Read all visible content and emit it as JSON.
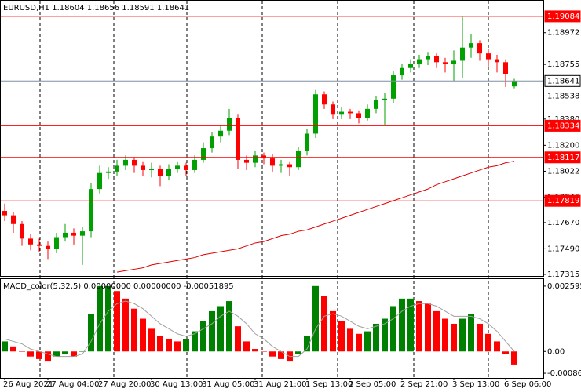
{
  "chart_data": [
    {
      "type": "candlestick",
      "title": "EURUSD,H1",
      "categories": [
        "26 Aug 2021",
        null,
        null,
        null,
        null,
        "27 Aug 04:00",
        null,
        null,
        null,
        null,
        null,
        "27 Aug 20:00",
        null,
        null,
        null,
        null,
        null,
        "30 Aug 13:00",
        null,
        null,
        null,
        null,
        null,
        "31 Aug 05:00",
        null,
        null,
        null,
        null,
        null,
        "31 Aug 21:00",
        null,
        null,
        null,
        null,
        null,
        "1 Sep 13:00",
        null,
        null,
        null,
        null,
        "2 Sep 05:00",
        null,
        null,
        null,
        null,
        null,
        "2 Sep 21:00",
        null,
        null,
        null,
        null,
        null,
        "3 Sep 13:00",
        null,
        null,
        null,
        null,
        null,
        "6 Sep 06:00",
        null
      ],
      "candles": [
        [
          1.1775,
          1.178,
          1.1768,
          1.1772
        ],
        [
          1.1772,
          1.1774,
          1.176,
          1.1766
        ],
        [
          1.1766,
          1.1768,
          1.1751,
          1.1756
        ],
        [
          1.1756,
          1.1759,
          1.1748,
          1.1752
        ],
        [
          1.1752,
          1.1756,
          1.1747,
          1.1751
        ],
        [
          1.1751,
          1.1754,
          1.1742,
          1.1749
        ],
        [
          1.1749,
          1.176,
          1.1746,
          1.1757
        ],
        [
          1.1757,
          1.1766,
          1.1754,
          1.176
        ],
        [
          1.176,
          1.1763,
          1.1752,
          1.1758
        ],
        [
          1.1758,
          1.1764,
          1.1738,
          1.1761
        ],
        [
          1.1761,
          1.1794,
          1.1757,
          1.179
        ],
        [
          1.179,
          1.1806,
          1.1787,
          1.1801
        ],
        [
          1.1801,
          1.1805,
          1.1797,
          1.1802
        ],
        [
          1.1802,
          1.181,
          1.1799,
          1.1806
        ],
        [
          1.1806,
          1.1813,
          1.1803,
          1.181
        ],
        [
          1.181,
          1.1812,
          1.1801,
          1.1806
        ],
        [
          1.1806,
          1.1809,
          1.1799,
          1.1803
        ],
        [
          1.1803,
          1.1808,
          1.1798,
          1.1804
        ],
        [
          1.1804,
          1.1806,
          1.1792,
          1.1799
        ],
        [
          1.1799,
          1.1807,
          1.1796,
          1.1804
        ],
        [
          1.1804,
          1.1809,
          1.1801,
          1.1806
        ],
        [
          1.1806,
          1.1808,
          1.1799,
          1.1803
        ],
        [
          1.1803,
          1.1813,
          1.1801,
          1.181
        ],
        [
          1.181,
          1.1822,
          1.1808,
          1.1818
        ],
        [
          1.1818,
          1.1829,
          1.1815,
          1.1826
        ],
        [
          1.1826,
          1.1834,
          1.1822,
          1.183
        ],
        [
          1.183,
          1.1845,
          1.1827,
          1.1839
        ],
        [
          1.1839,
          1.1841,
          1.1804,
          1.181
        ],
        [
          1.181,
          1.1813,
          1.1803,
          1.1808
        ],
        [
          1.1808,
          1.1816,
          1.1805,
          1.1813
        ],
        [
          1.1813,
          1.1815,
          1.1807,
          1.1811
        ],
        [
          1.1811,
          1.1814,
          1.1802,
          1.1806
        ],
        [
          1.1806,
          1.181,
          1.1801,
          1.1807
        ],
        [
          1.1807,
          1.1809,
          1.1799,
          1.1805
        ],
        [
          1.1805,
          1.1819,
          1.1803,
          1.1816
        ],
        [
          1.1816,
          1.1831,
          1.1813,
          1.1828
        ],
        [
          1.1828,
          1.1858,
          1.1825,
          1.1855
        ],
        [
          1.1855,
          1.1857,
          1.1845,
          1.1848
        ],
        [
          1.1848,
          1.185,
          1.1838,
          1.1841
        ],
        [
          1.1841,
          1.1846,
          1.1838,
          1.1843
        ],
        [
          1.1843,
          1.1845,
          1.1838,
          1.1842
        ],
        [
          1.1842,
          1.1844,
          1.1835,
          1.1839
        ],
        [
          1.1839,
          1.1848,
          1.1837,
          1.1845
        ],
        [
          1.1845,
          1.1854,
          1.1842,
          1.1851
        ],
        [
          1.1851,
          1.1856,
          1.1834,
          1.1852
        ],
        [
          1.1852,
          1.1871,
          1.1849,
          1.1868
        ],
        [
          1.1868,
          1.1876,
          1.1865,
          1.1873
        ],
        [
          1.1873,
          1.1879,
          1.187,
          1.1876
        ],
        [
          1.1876,
          1.1882,
          1.1873,
          1.1879
        ],
        [
          1.1879,
          1.1884,
          1.1875,
          1.1881
        ],
        [
          1.1881,
          1.1883,
          1.1873,
          1.1877
        ],
        [
          1.1877,
          1.188,
          1.187,
          1.1876
        ],
        [
          1.1876,
          1.1885,
          1.1864,
          1.1878
        ],
        [
          1.1878,
          1.1908,
          1.1866,
          1.1887
        ],
        [
          1.1887,
          1.1896,
          1.188,
          1.189
        ],
        [
          1.189,
          1.1892,
          1.1878,
          1.1883
        ],
        [
          1.1883,
          1.1886,
          1.1874,
          1.1879
        ],
        [
          1.1879,
          1.1882,
          1.187,
          1.1877
        ],
        [
          1.1877,
          1.1879,
          1.186,
          1.1869
        ],
        [
          1.18604,
          1.18656,
          1.18591,
          1.18641
        ]
      ],
      "up_color": "#00a000",
      "down_color": "#ff0000",
      "ma": {
        "color": "#e00000",
        "values": [
          null,
          null,
          null,
          null,
          null,
          null,
          null,
          null,
          null,
          null,
          null,
          null,
          null,
          1.1733,
          1.1734,
          1.1735,
          1.1736,
          1.1738,
          1.1739,
          1.174,
          1.1741,
          1.1742,
          1.1743,
          1.1745,
          1.1746,
          1.1747,
          1.1748,
          1.1749,
          1.1751,
          1.1753,
          1.1754,
          1.1756,
          1.1758,
          1.1759,
          1.1761,
          1.1762,
          1.1764,
          1.1766,
          1.1768,
          1.177,
          1.1772,
          1.1774,
          1.1776,
          1.1778,
          1.178,
          1.1782,
          1.1784,
          1.1786,
          1.1788,
          1.179,
          1.1793,
          1.1795,
          1.1797,
          1.1799,
          1.1801,
          1.1803,
          1.1805,
          1.1806,
          1.1808,
          1.1809
        ]
      },
      "hlines": [
        {
          "value": 1.19084,
          "color": "#ff0000"
        },
        {
          "value": 1.18641,
          "color": "#7f8fa0"
        },
        {
          "value": 1.18334,
          "color": "#ff0000"
        },
        {
          "value": 1.18117,
          "color": "#ff0000"
        },
        {
          "value": 1.17819,
          "color": "#ff0000"
        }
      ],
      "ylim": [
        1.17304,
        1.19191
      ],
      "yticks": [
        1.18972,
        1.18755,
        1.18538,
        {
          "value": 1.1838,
          "label": "1.18380"
        },
        {
          "value": 1.182,
          "label": "1.18200"
        },
        1.18022,
        1.17845,
        {
          "value": 1.1767,
          "label": "1.17670"
        },
        {
          "value": 1.1749,
          "label": "1.17490"
        },
        1.17315
      ]
    },
    {
      "type": "bar",
      "title": "MACD_color(5,32,5) 0.00000000 0.00000000 -0.00051895",
      "values": [
        0.0004,
        0.0002,
        0.0,
        -0.0002,
        -0.0003,
        -0.0004,
        -0.0002,
        -0.0001,
        -0.0002,
        0.0,
        0.0015,
        0.0026,
        0.0026,
        0.0024,
        0.0021,
        0.0017,
        0.0013,
        0.0009,
        0.0006,
        0.0005,
        0.0004,
        0.0005,
        0.0008,
        0.0012,
        0.0016,
        0.0018,
        0.002,
        0.001,
        0.0004,
        0.0001,
        0.0,
        -0.0002,
        -0.0003,
        -0.0004,
        -0.0001,
        0.0006,
        0.0026,
        0.0022,
        0.0016,
        0.0012,
        0.0009,
        0.0007,
        0.0008,
        0.0011,
        0.0013,
        0.0018,
        0.0021,
        0.0021,
        0.002,
        0.0019,
        0.0016,
        0.0013,
        0.0011,
        0.0013,
        0.0015,
        0.0011,
        0.0007,
        0.0004,
        -0.0001,
        -0.00051895
      ],
      "up_color": "#008000",
      "down_color": "#ff0000",
      "signal": {
        "color": "#a0a0a0",
        "values": [
          0.0005,
          0.0004,
          0.0003,
          0.0001,
          0.0,
          -0.0001,
          -0.0002,
          -0.0002,
          -0.0002,
          -0.0001,
          0.0004,
          0.0011,
          0.0016,
          0.0019,
          0.002,
          0.0019,
          0.0017,
          0.0014,
          0.0011,
          0.0009,
          0.0007,
          0.0006,
          0.0007,
          0.0009,
          0.0011,
          0.0014,
          0.0016,
          0.0014,
          0.0011,
          0.0007,
          0.0005,
          0.0002,
          0.0,
          -0.0002,
          -0.0002,
          0.0001,
          0.0009,
          0.0014,
          0.0015,
          0.0014,
          0.0012,
          0.001,
          0.0009,
          0.001,
          0.0011,
          0.0013,
          0.0016,
          0.0018,
          0.0019,
          0.0019,
          0.0018,
          0.0016,
          0.0014,
          0.0014,
          0.0014,
          0.0013,
          0.0011,
          0.0008,
          0.0004,
          0.0
        ]
      },
      "ylim": [
        -0.001051,
        0.002874
      ],
      "yticks": [
        0.0025959,
        {
          "value": 0,
          "label": "0.00"
        },
        -0.000866
      ]
    }
  ]
}
